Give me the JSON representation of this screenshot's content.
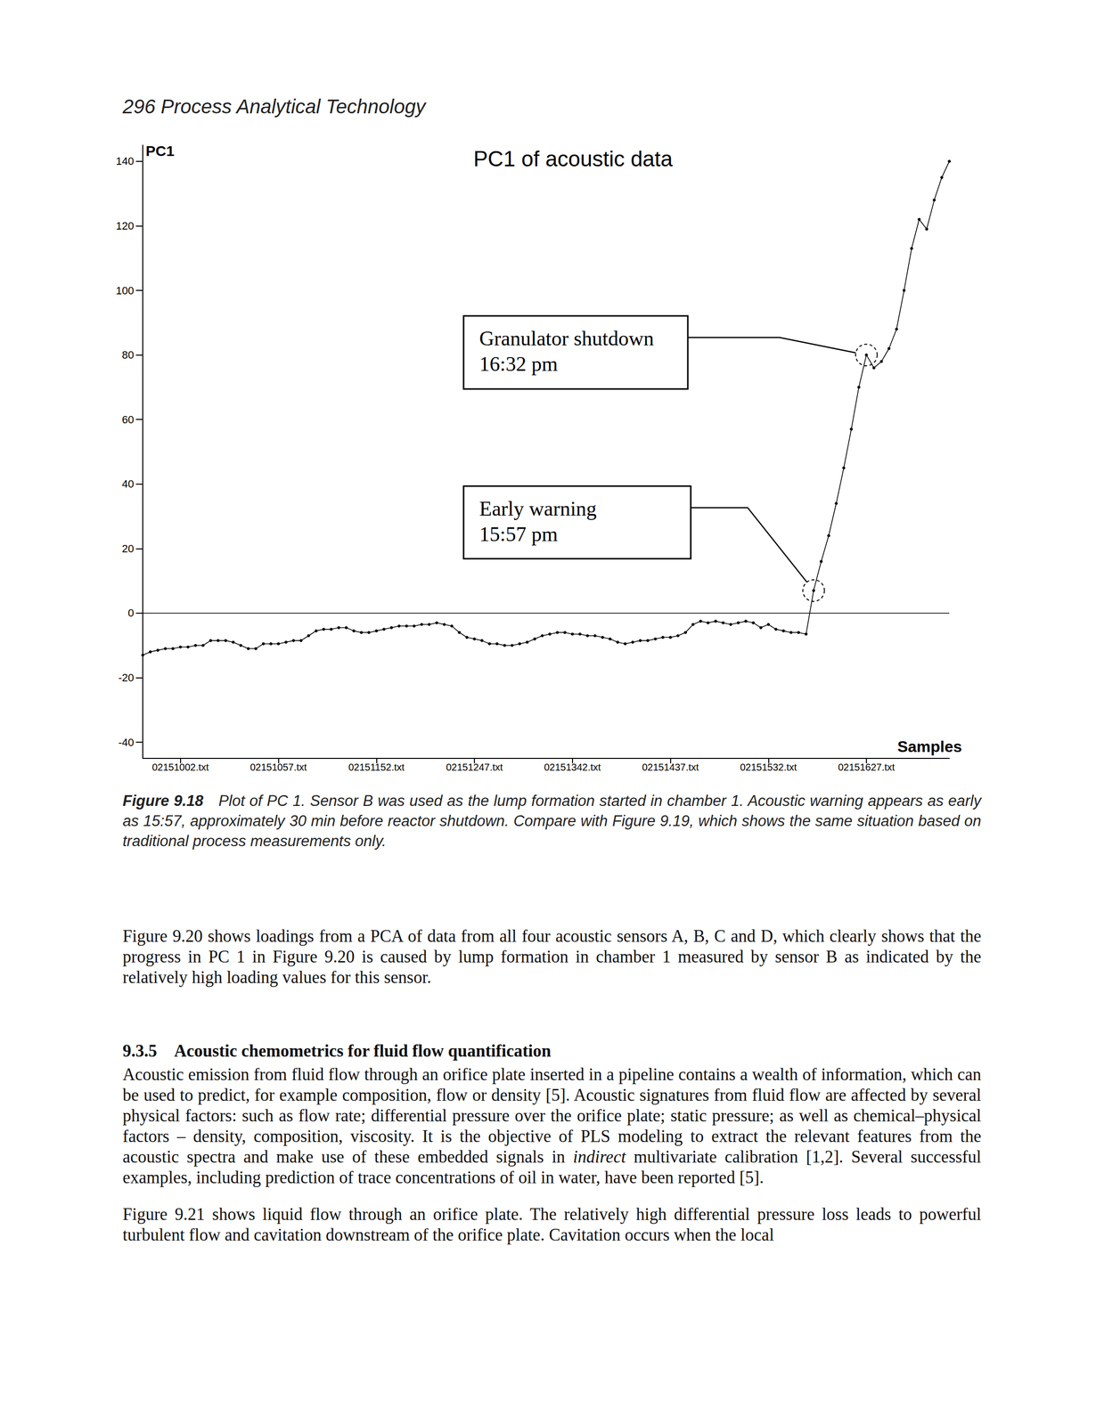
{
  "header": {
    "page_number": "296",
    "running_title": "Process Analytical Technology"
  },
  "chart_data": {
    "type": "line",
    "title": "PC1 of acoustic data",
    "y_label": "PC1",
    "x_label": "Samples",
    "categories": [
      null,
      null,
      null,
      null,
      null,
      "02151002.txt",
      null,
      null,
      null,
      null,
      null,
      null,
      null,
      null,
      null,
      null,
      null,
      null,
      "02151057.txt",
      null,
      null,
      null,
      null,
      null,
      null,
      null,
      null,
      null,
      null,
      null,
      null,
      "02151152.txt",
      null,
      null,
      null,
      null,
      null,
      null,
      null,
      null,
      null,
      null,
      null,
      null,
      "02151247.txt",
      null,
      null,
      null,
      null,
      null,
      null,
      null,
      null,
      null,
      null,
      null,
      null,
      "02151342.txt",
      null,
      null,
      null,
      null,
      null,
      null,
      null,
      null,
      null,
      null,
      null,
      null,
      "02151437.txt",
      null,
      null,
      null,
      null,
      null,
      null,
      null,
      null,
      null,
      null,
      null,
      null,
      "02151532.txt",
      null,
      null,
      null,
      null,
      null,
      null,
      null,
      null,
      null,
      null,
      null,
      null,
      "02151627.txt",
      null,
      null,
      null,
      null,
      null,
      null,
      null,
      null,
      null,
      null,
      null
    ],
    "values": [
      -13,
      -12,
      -11.5,
      -11,
      -11,
      -10.5,
      -10.5,
      -10,
      -10,
      -8.5,
      -8.5,
      -8.5,
      -9,
      -10,
      -11,
      -11,
      -9.5,
      -9.5,
      -9.5,
      -9,
      -8.5,
      -8.5,
      -7,
      -5.5,
      -5,
      -5,
      -4.5,
      -4.5,
      -5.5,
      -6,
      -6,
      -5.5,
      -5,
      -4.5,
      -4,
      -4,
      -4,
      -3.5,
      -3.5,
      -3,
      -3.5,
      -4,
      -6,
      -7.5,
      -8,
      -8.5,
      -9.5,
      -9.5,
      -10,
      -10,
      -9.5,
      -9,
      -8,
      -7,
      -6.5,
      -6,
      -6,
      -6.5,
      -6.5,
      -7,
      -7,
      -7.5,
      -8,
      -9,
      -9.5,
      -9,
      -8.5,
      -8.5,
      -8,
      -7.5,
      -7.5,
      -7,
      -6,
      -3.5,
      -2.5,
      -3,
      -2.5,
      -3,
      -3.5,
      -3,
      -2.5,
      -3,
      -4.5,
      -3.5,
      -5,
      -5.5,
      -6,
      -6,
      -6.5,
      7,
      16,
      24,
      34,
      45,
      57,
      70,
      80,
      76,
      78,
      82,
      88,
      100,
      113,
      122,
      119,
      128,
      135,
      140
    ],
    "color": "#000000",
    "marker": "circle",
    "ylim": [
      -45,
      145
    ],
    "yticks": [
      -40,
      -20,
      0,
      20,
      40,
      60,
      80,
      100,
      120,
      140
    ],
    "grid": false,
    "hline": 0,
    "annotations": [
      {
        "text": "Granulator shutdown\n16:32 pm",
        "at_sample": 96
      },
      {
        "text": "Early warning\n15:57 pm",
        "at_sample": 89
      }
    ]
  },
  "caption": {
    "label": "Figure 9.18",
    "text": "Plot of PC 1. Sensor B was used as the lump formation started in chamber 1. Acoustic warning appears as early as 15:57, approximately 30 min before reactor shutdown. Compare with Figure 9.19, which shows the same situation based on traditional process measurements only."
  },
  "body": [
    {
      "type": "paragraph",
      "runs": [
        {
          "text": "Figure 9.20 shows loadings from a PCA of data from all four acoustic sensors A, B, C and D, which clearly shows that the progress in PC 1 in Figure 9.20 is caused by lump formation in chamber 1 measured by sensor B as indicated by the relatively high loading values for this sensor."
        }
      ]
    },
    {
      "type": "heading",
      "number": "9.3.5",
      "text": "Acoustic chemometrics for fluid flow quantification"
    },
    {
      "type": "paragraph",
      "runs": [
        {
          "text": "Acoustic emission from fluid flow through an orifice plate inserted in a pipeline contains a wealth of information, which can be used to predict, for example composition, flow or density [5]. Acoustic signatures from fluid flow are affected by several physical factors: such as flow rate; differential pressure over the orifice plate; static pressure; as well as chemical–physical factors – density, composition, viscosity. It is the objective of PLS modeling to extract the relevant features from the acoustic spectra and make use of these embedded signals in "
        },
        {
          "text": "indirect",
          "style": "italic"
        },
        {
          "text": " multivariate calibration [1,2]. Several successful examples, including prediction of trace concentrations of oil in water, have been reported [5]."
        }
      ]
    },
    {
      "type": "paragraph",
      "runs": [
        {
          "text": "Figure 9.21 shows liquid flow through an orifice plate. The relatively high differential pressure loss leads to powerful turbulent flow and cavitation downstream of the orifice plate. Cavitation occurs when the local"
        }
      ]
    }
  ]
}
